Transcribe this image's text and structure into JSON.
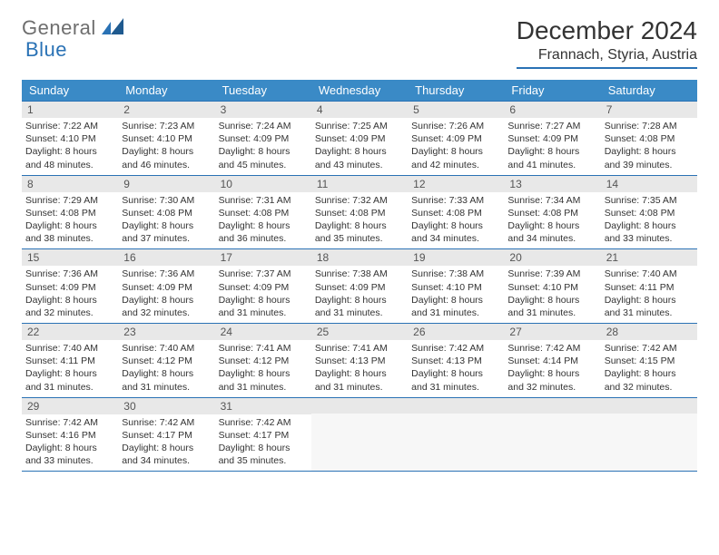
{
  "brand": {
    "part1": "General",
    "part2": "Blue"
  },
  "title": "December 2024",
  "location": "Frannach, Styria, Austria",
  "colors": {
    "header_bg": "#3a8ac6",
    "rule": "#2a72b5",
    "daynum_bg": "#e8e8e8",
    "empty_bg": "#f7f7f7",
    "text": "#333333",
    "logo_gray": "#6e6e6e",
    "logo_blue": "#2a72b5"
  },
  "typography": {
    "title_fontsize": 28,
    "location_fontsize": 16,
    "weekday_fontsize": 13,
    "daynum_fontsize": 12,
    "body_fontsize": 10.5
  },
  "weekdays": [
    "Sunday",
    "Monday",
    "Tuesday",
    "Wednesday",
    "Thursday",
    "Friday",
    "Saturday"
  ],
  "weeks": [
    [
      {
        "n": "1",
        "sr": "7:22 AM",
        "ss": "4:10 PM",
        "dl": "8 hours and 48 minutes."
      },
      {
        "n": "2",
        "sr": "7:23 AM",
        "ss": "4:10 PM",
        "dl": "8 hours and 46 minutes."
      },
      {
        "n": "3",
        "sr": "7:24 AM",
        "ss": "4:09 PM",
        "dl": "8 hours and 45 minutes."
      },
      {
        "n": "4",
        "sr": "7:25 AM",
        "ss": "4:09 PM",
        "dl": "8 hours and 43 minutes."
      },
      {
        "n": "5",
        "sr": "7:26 AM",
        "ss": "4:09 PM",
        "dl": "8 hours and 42 minutes."
      },
      {
        "n": "6",
        "sr": "7:27 AM",
        "ss": "4:09 PM",
        "dl": "8 hours and 41 minutes."
      },
      {
        "n": "7",
        "sr": "7:28 AM",
        "ss": "4:08 PM",
        "dl": "8 hours and 39 minutes."
      }
    ],
    [
      {
        "n": "8",
        "sr": "7:29 AM",
        "ss": "4:08 PM",
        "dl": "8 hours and 38 minutes."
      },
      {
        "n": "9",
        "sr": "7:30 AM",
        "ss": "4:08 PM",
        "dl": "8 hours and 37 minutes."
      },
      {
        "n": "10",
        "sr": "7:31 AM",
        "ss": "4:08 PM",
        "dl": "8 hours and 36 minutes."
      },
      {
        "n": "11",
        "sr": "7:32 AM",
        "ss": "4:08 PM",
        "dl": "8 hours and 35 minutes."
      },
      {
        "n": "12",
        "sr": "7:33 AM",
        "ss": "4:08 PM",
        "dl": "8 hours and 34 minutes."
      },
      {
        "n": "13",
        "sr": "7:34 AM",
        "ss": "4:08 PM",
        "dl": "8 hours and 34 minutes."
      },
      {
        "n": "14",
        "sr": "7:35 AM",
        "ss": "4:08 PM",
        "dl": "8 hours and 33 minutes."
      }
    ],
    [
      {
        "n": "15",
        "sr": "7:36 AM",
        "ss": "4:09 PM",
        "dl": "8 hours and 32 minutes."
      },
      {
        "n": "16",
        "sr": "7:36 AM",
        "ss": "4:09 PM",
        "dl": "8 hours and 32 minutes."
      },
      {
        "n": "17",
        "sr": "7:37 AM",
        "ss": "4:09 PM",
        "dl": "8 hours and 31 minutes."
      },
      {
        "n": "18",
        "sr": "7:38 AM",
        "ss": "4:09 PM",
        "dl": "8 hours and 31 minutes."
      },
      {
        "n": "19",
        "sr": "7:38 AM",
        "ss": "4:10 PM",
        "dl": "8 hours and 31 minutes."
      },
      {
        "n": "20",
        "sr": "7:39 AM",
        "ss": "4:10 PM",
        "dl": "8 hours and 31 minutes."
      },
      {
        "n": "21",
        "sr": "7:40 AM",
        "ss": "4:11 PM",
        "dl": "8 hours and 31 minutes."
      }
    ],
    [
      {
        "n": "22",
        "sr": "7:40 AM",
        "ss": "4:11 PM",
        "dl": "8 hours and 31 minutes."
      },
      {
        "n": "23",
        "sr": "7:40 AM",
        "ss": "4:12 PM",
        "dl": "8 hours and 31 minutes."
      },
      {
        "n": "24",
        "sr": "7:41 AM",
        "ss": "4:12 PM",
        "dl": "8 hours and 31 minutes."
      },
      {
        "n": "25",
        "sr": "7:41 AM",
        "ss": "4:13 PM",
        "dl": "8 hours and 31 minutes."
      },
      {
        "n": "26",
        "sr": "7:42 AM",
        "ss": "4:13 PM",
        "dl": "8 hours and 31 minutes."
      },
      {
        "n": "27",
        "sr": "7:42 AM",
        "ss": "4:14 PM",
        "dl": "8 hours and 32 minutes."
      },
      {
        "n": "28",
        "sr": "7:42 AM",
        "ss": "4:15 PM",
        "dl": "8 hours and 32 minutes."
      }
    ],
    [
      {
        "n": "29",
        "sr": "7:42 AM",
        "ss": "4:16 PM",
        "dl": "8 hours and 33 minutes."
      },
      {
        "n": "30",
        "sr": "7:42 AM",
        "ss": "4:17 PM",
        "dl": "8 hours and 34 minutes."
      },
      {
        "n": "31",
        "sr": "7:42 AM",
        "ss": "4:17 PM",
        "dl": "8 hours and 35 minutes."
      },
      null,
      null,
      null,
      null
    ]
  ],
  "labels": {
    "sunrise": "Sunrise:",
    "sunset": "Sunset:",
    "daylight": "Daylight:"
  }
}
